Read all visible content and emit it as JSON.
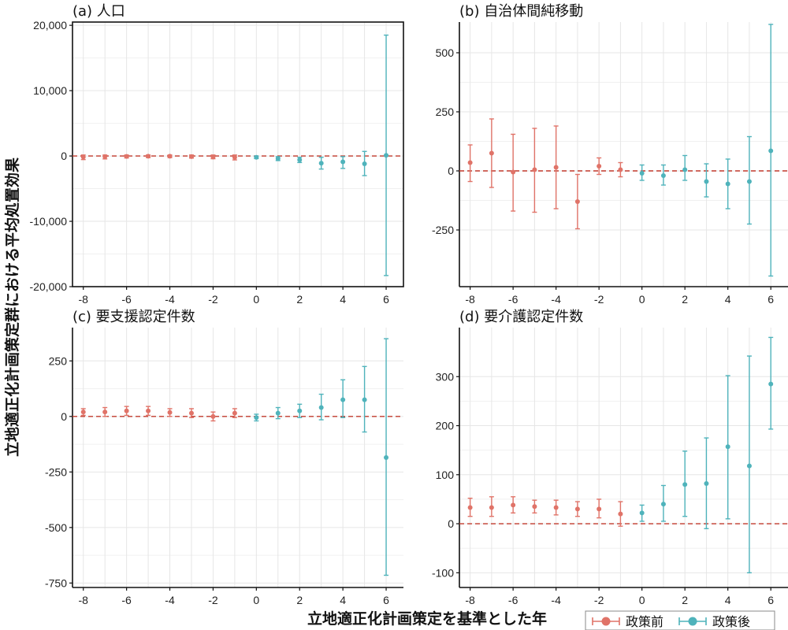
{
  "colors": {
    "pre": "#e07368",
    "post": "#4fb3bb",
    "zero_line": "#c0392b",
    "frame": "#111111",
    "grid": "#e6e6e6"
  },
  "x_title": "立地適正化計画策定を基準とした年",
  "y_title": "立地適正化計画策定群における平均処置効果",
  "legend": {
    "position": "bottom-right",
    "items": [
      {
        "label": "政策前",
        "color": "#e07368"
      },
      {
        "label": "政策後",
        "color": "#4fb3bb"
      }
    ]
  },
  "chart_data": [
    {
      "type": "scatter",
      "title": "(a) 人口",
      "x_ticks": [
        "-8",
        "-6",
        "-4",
        "-2",
        "0",
        "2",
        "4",
        "6"
      ],
      "xlim": [
        -8.5,
        6.8
      ],
      "ylim": [
        -20000,
        20500
      ],
      "y_ticks": [
        -20000,
        -10000,
        0,
        10000,
        20000
      ],
      "y_tick_labels": [
        "-20,000",
        "-10,000",
        "0",
        "10,000",
        "20,000"
      ],
      "grid": true,
      "reference_line": 0,
      "series": [
        {
          "name": "政策前",
          "x": [
            -8,
            -7,
            -6,
            -5,
            -4,
            -3,
            -2,
            -1
          ],
          "y": [
            -150,
            -100,
            -60,
            -40,
            -30,
            -90,
            -150,
            -200
          ],
          "lo": [
            -550,
            -450,
            -300,
            -250,
            -250,
            -320,
            -420,
            -600
          ],
          "hi": [
            150,
            150,
            150,
            150,
            150,
            150,
            150,
            150
          ]
        },
        {
          "name": "政策後",
          "x": [
            0,
            1,
            2,
            3,
            4,
            5,
            6
          ],
          "y": [
            -200,
            -400,
            -600,
            -1100,
            -900,
            -1200,
            100
          ],
          "lo": [
            -400,
            -700,
            -1000,
            -2000,
            -1900,
            -3000,
            -18300
          ],
          "hi": [
            0,
            -100,
            -200,
            -200,
            -100,
            700,
            18500
          ]
        }
      ]
    },
    {
      "type": "scatter",
      "title": "(b) 自治体間純移動",
      "x_ticks": [
        "-8",
        "-6",
        "-4",
        "-2",
        "0",
        "2",
        "4",
        "6"
      ],
      "xlim": [
        -8.5,
        6.8
      ],
      "ylim": [
        -490,
        630
      ],
      "y_ticks": [
        -250,
        0,
        250,
        500
      ],
      "y_tick_labels": [
        "-250",
        "0",
        "250",
        "500"
      ],
      "grid": true,
      "reference_line": 0,
      "series": [
        {
          "name": "政策前",
          "x": [
            -8,
            -7,
            -6,
            -5,
            -4,
            -3,
            -2,
            -1
          ],
          "y": [
            35,
            75,
            -5,
            5,
            15,
            -130,
            20,
            5
          ],
          "lo": [
            -45,
            -70,
            -170,
            -175,
            -160,
            -245,
            -15,
            -25
          ],
          "hi": [
            110,
            220,
            155,
            180,
            190,
            -15,
            55,
            35
          ]
        },
        {
          "name": "政策後",
          "x": [
            0,
            1,
            2,
            3,
            4,
            5,
            6
          ],
          "y": [
            -10,
            -20,
            5,
            -45,
            -55,
            -45,
            85
          ],
          "lo": [
            -40,
            -60,
            -40,
            -110,
            -160,
            -225,
            -445
          ],
          "hi": [
            25,
            25,
            65,
            30,
            50,
            145,
            620
          ]
        }
      ]
    },
    {
      "type": "scatter",
      "title": "(c) 要支援認定件数",
      "x_ticks": [
        "-8",
        "-6",
        "-4",
        "-2",
        "0",
        "2",
        "4",
        "6"
      ],
      "xlim": [
        -8.5,
        6.8
      ],
      "ylim": [
        -770,
        400
      ],
      "y_ticks": [
        -750,
        -500,
        -250,
        0,
        250
      ],
      "y_tick_labels": [
        "-750",
        "-500",
        "-250",
        "0",
        "250"
      ],
      "grid": true,
      "reference_line": 0,
      "series": [
        {
          "name": "政策前",
          "x": [
            -8,
            -7,
            -6,
            -5,
            -4,
            -3,
            -2,
            -1
          ],
          "y": [
            20,
            20,
            25,
            25,
            18,
            15,
            0,
            15
          ],
          "lo": [
            5,
            0,
            5,
            5,
            0,
            -5,
            -20,
            -5
          ],
          "hi": [
            35,
            40,
            45,
            45,
            35,
            35,
            20,
            35
          ]
        },
        {
          "name": "政策後",
          "x": [
            0,
            1,
            2,
            3,
            4,
            5,
            6
          ],
          "y": [
            -5,
            15,
            25,
            40,
            75,
            75,
            -185
          ],
          "lo": [
            -20,
            -10,
            -5,
            -15,
            -5,
            -70,
            -715
          ],
          "hi": [
            10,
            40,
            55,
            100,
            165,
            225,
            350
          ]
        }
      ]
    },
    {
      "type": "scatter",
      "title": "(d) 要介護認定件数",
      "x_ticks": [
        "-8",
        "-6",
        "-4",
        "-2",
        "0",
        "2",
        "4",
        "6"
      ],
      "xlim": [
        -8.5,
        6.8
      ],
      "ylim": [
        -130,
        400
      ],
      "y_ticks": [
        -100,
        0,
        100,
        200,
        300
      ],
      "y_tick_labels": [
        "-100",
        "0",
        "100",
        "200",
        "300"
      ],
      "grid": true,
      "reference_line": 0,
      "series": [
        {
          "name": "政策前",
          "x": [
            -8,
            -7,
            -6,
            -5,
            -4,
            -3,
            -2,
            -1
          ],
          "y": [
            33,
            33,
            38,
            35,
            33,
            30,
            30,
            20
          ],
          "lo": [
            15,
            15,
            22,
            22,
            18,
            15,
            12,
            -5
          ],
          "hi": [
            52,
            55,
            55,
            48,
            48,
            45,
            50,
            45
          ]
        },
        {
          "name": "政策後",
          "x": [
            0,
            1,
            2,
            3,
            4,
            5,
            6
          ],
          "y": [
            22,
            40,
            80,
            82,
            157,
            118,
            285
          ],
          "lo": [
            5,
            5,
            15,
            -10,
            10,
            -100,
            193
          ],
          "hi": [
            38,
            78,
            148,
            175,
            302,
            342,
            380
          ]
        }
      ]
    }
  ]
}
